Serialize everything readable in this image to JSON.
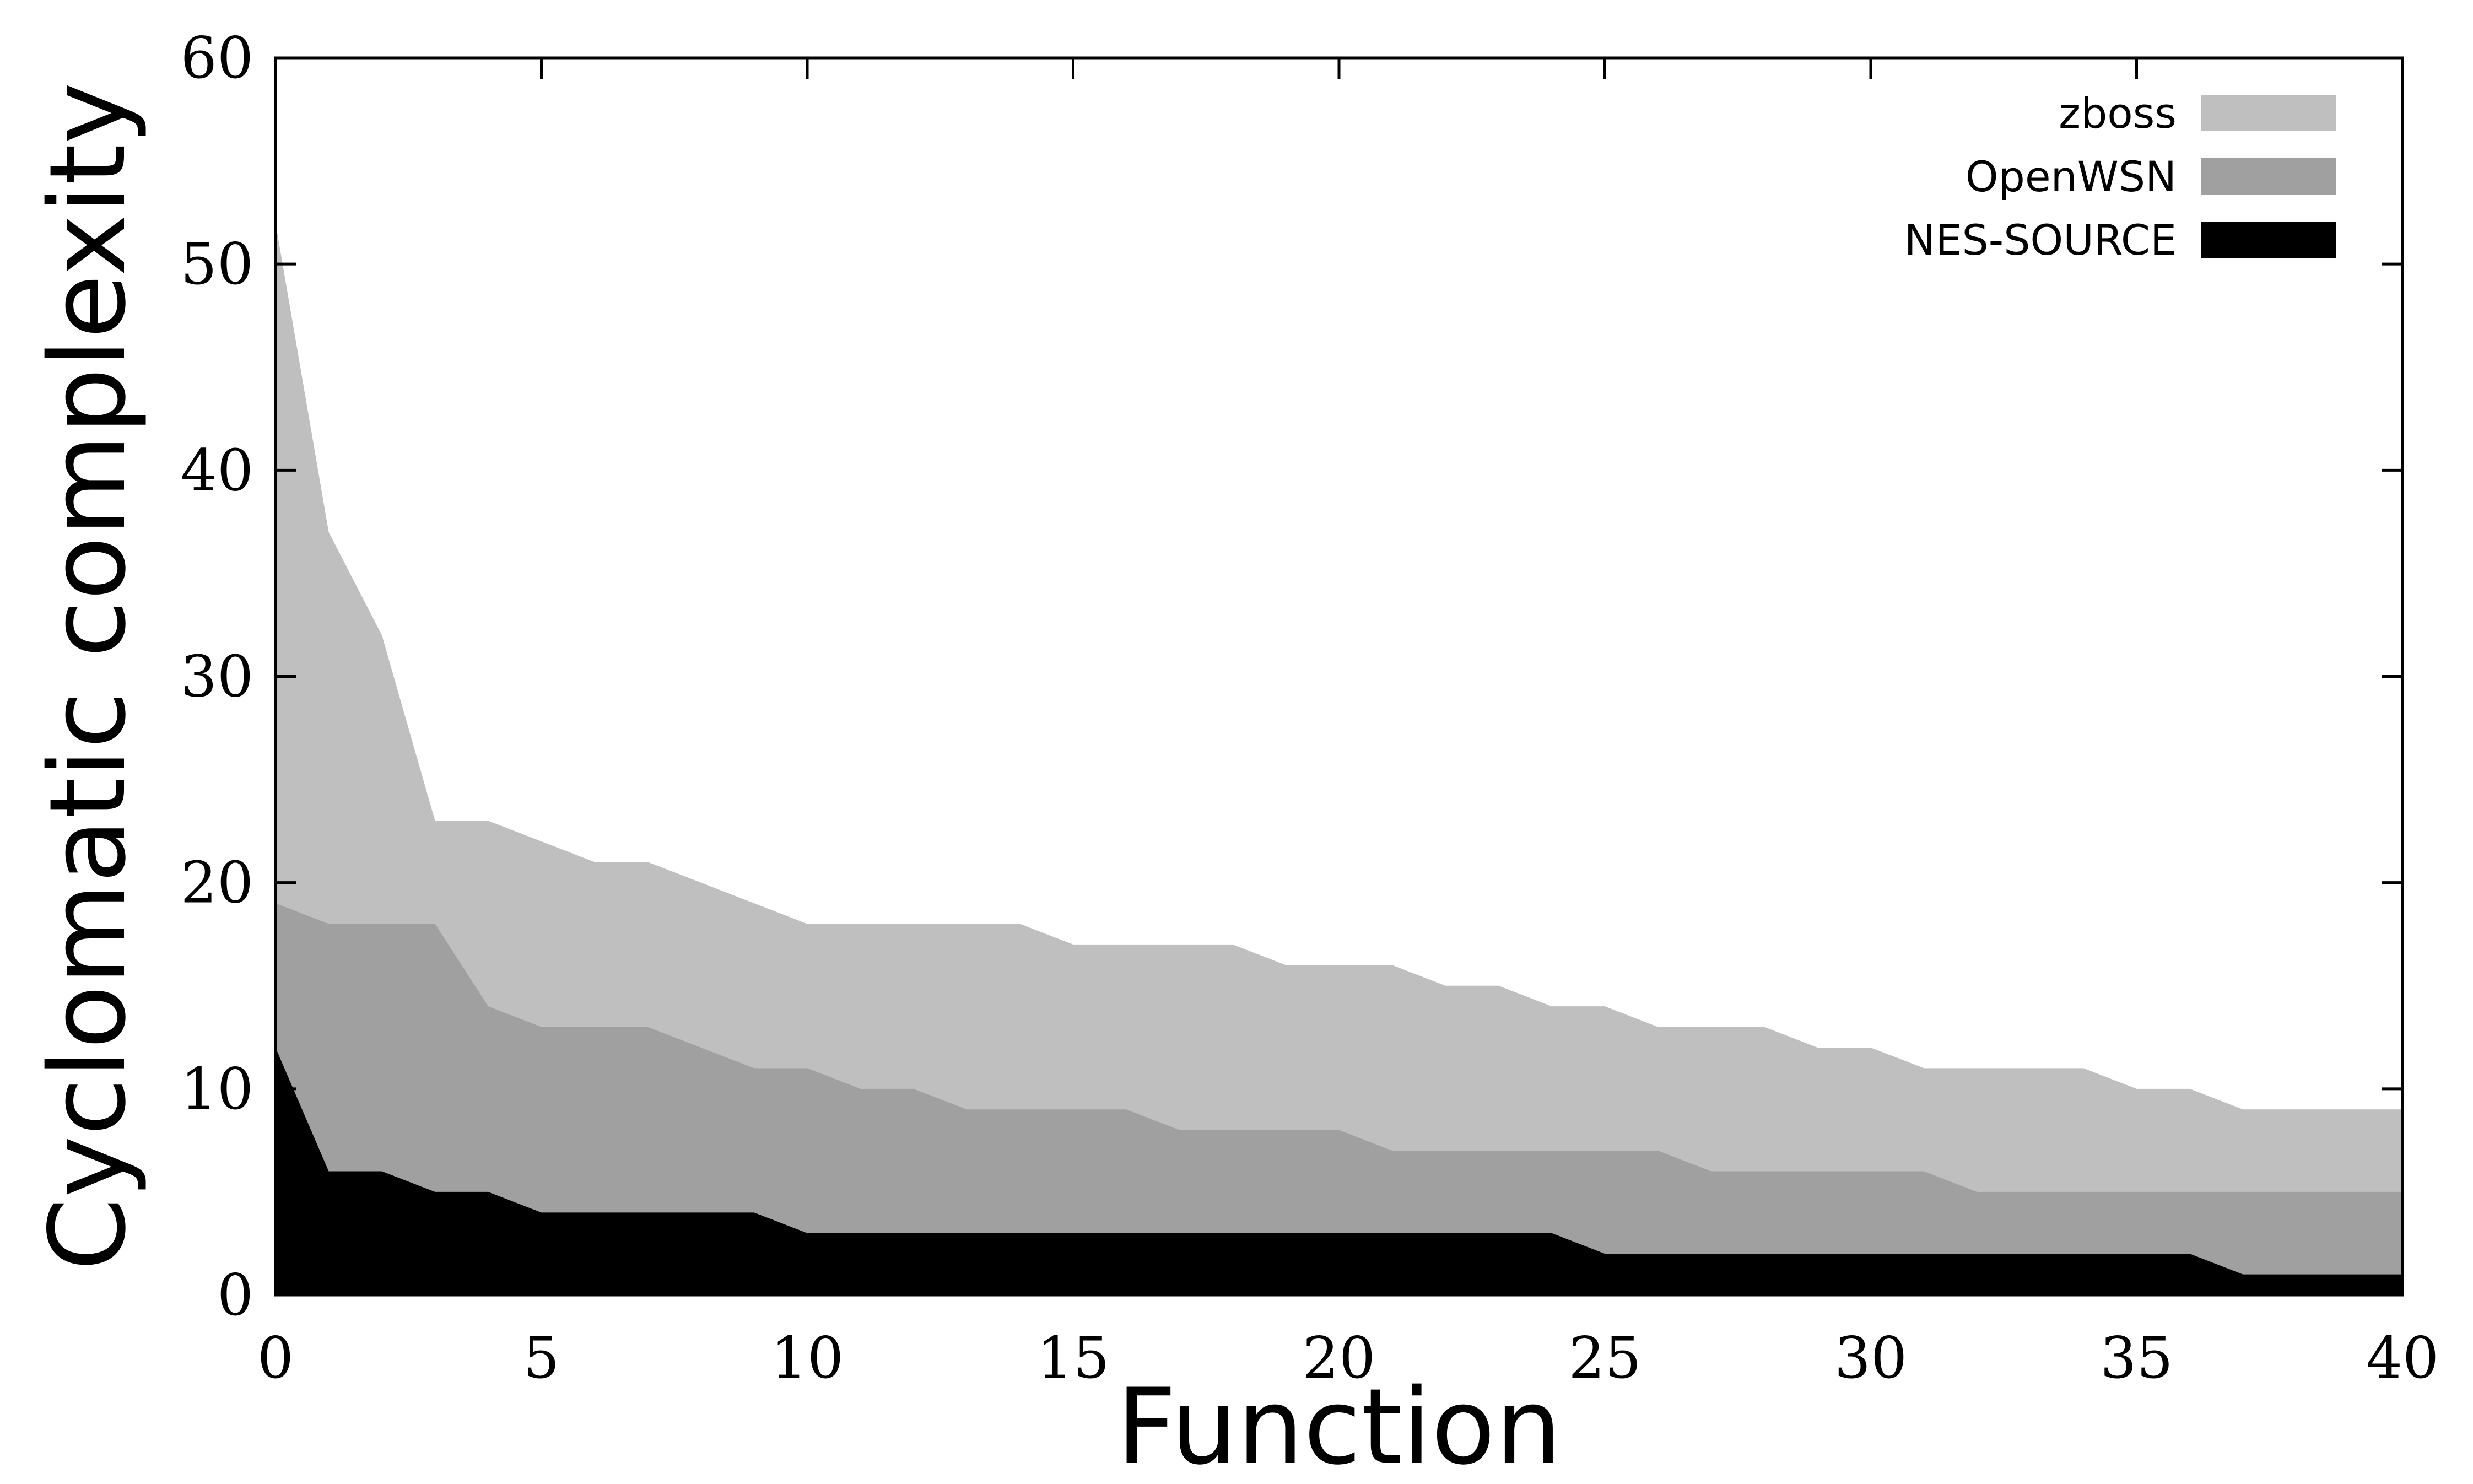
{
  "chart_data": {
    "type": "area",
    "xlabel": "Function",
    "ylabel": "Cyclomatic complexity",
    "xlim": [
      0,
      40
    ],
    "ylim": [
      0,
      60
    ],
    "xticks": [
      "0",
      "5",
      "10",
      "15",
      "20",
      "25",
      "30",
      "35",
      "40"
    ],
    "yticks": [
      "0",
      "10",
      "20",
      "30",
      "40",
      "50",
      "60"
    ],
    "grid": false,
    "legend_position": "top-right",
    "x": [
      0,
      1,
      2,
      3,
      4,
      5,
      6,
      7,
      8,
      9,
      10,
      11,
      12,
      13,
      14,
      15,
      16,
      17,
      18,
      19,
      20,
      21,
      22,
      23,
      24,
      25,
      26,
      27,
      28,
      29,
      30,
      31,
      32,
      33,
      34,
      35,
      36,
      37,
      38,
      39,
      40
    ],
    "series": [
      {
        "name": "zboss",
        "color": "#bfbfbf",
        "values": [
          52,
          37,
          32,
          23,
          23,
          22,
          21,
          21,
          20,
          19,
          18,
          18,
          18,
          18,
          18,
          17,
          17,
          17,
          17,
          16,
          16,
          16,
          15,
          15,
          14,
          14,
          13,
          13,
          13,
          12,
          12,
          11,
          11,
          11,
          11,
          10,
          10,
          9,
          9,
          9,
          9
        ]
      },
      {
        "name": "OpenWSN",
        "color": "#a0a0a0",
        "values": [
          19,
          18,
          18,
          18,
          14,
          13,
          13,
          13,
          12,
          11,
          11,
          10,
          10,
          9,
          9,
          9,
          9,
          8,
          8,
          8,
          8,
          7,
          7,
          7,
          7,
          7,
          7,
          6,
          6,
          6,
          6,
          6,
          5,
          5,
          5,
          5,
          5,
          5,
          5,
          5,
          5
        ]
      },
      {
        "name": "NES-SOURCE",
        "color": "#000000",
        "values": [
          12,
          6,
          6,
          5,
          5,
          4,
          4,
          4,
          4,
          4,
          3,
          3,
          3,
          3,
          3,
          3,
          3,
          3,
          3,
          3,
          3,
          3,
          3,
          3,
          3,
          2,
          2,
          2,
          2,
          2,
          2,
          2,
          2,
          2,
          2,
          2,
          2,
          1,
          1,
          1,
          1
        ]
      }
    ]
  }
}
